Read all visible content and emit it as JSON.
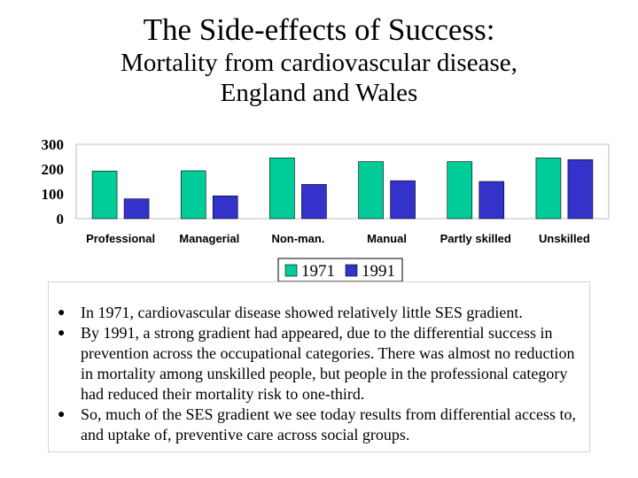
{
  "slide": {
    "title": "The Side-effects of Success:",
    "subtitle_line1": "Mortality from cardiovascular disease,",
    "subtitle_line2": "England and Wales"
  },
  "chart_data": {
    "type": "bar",
    "categories": [
      "Professional",
      "Managerial",
      "Non-man.",
      "Manual",
      "Partly skilled",
      "Unskilled"
    ],
    "series": [
      {
        "name": "1971",
        "values": [
          192,
          193,
          245,
          230,
          230,
          245
        ],
        "color": "#00cc99"
      },
      {
        "name": "1991",
        "values": [
          80,
          92,
          138,
          153,
          150,
          238
        ],
        "color": "#3333cc"
      }
    ],
    "ylim": [
      0,
      300
    ],
    "yticks": [
      0,
      100,
      200,
      300
    ],
    "grid": false,
    "legend": "bottom-center"
  },
  "bullets": [
    "In 1971, cardiovascular disease showed relatively little SES gradient.",
    "By 1991, a strong gradient had appeared, due to the differential success in prevention across the occupational categories. There was almost no reduction in mortality among unskilled people, but people in the professional category had reduced their mortality risk to one-third.",
    "So, much of the SES gradient we see today results from differential access to, and uptake of, preventive care across social groups."
  ]
}
